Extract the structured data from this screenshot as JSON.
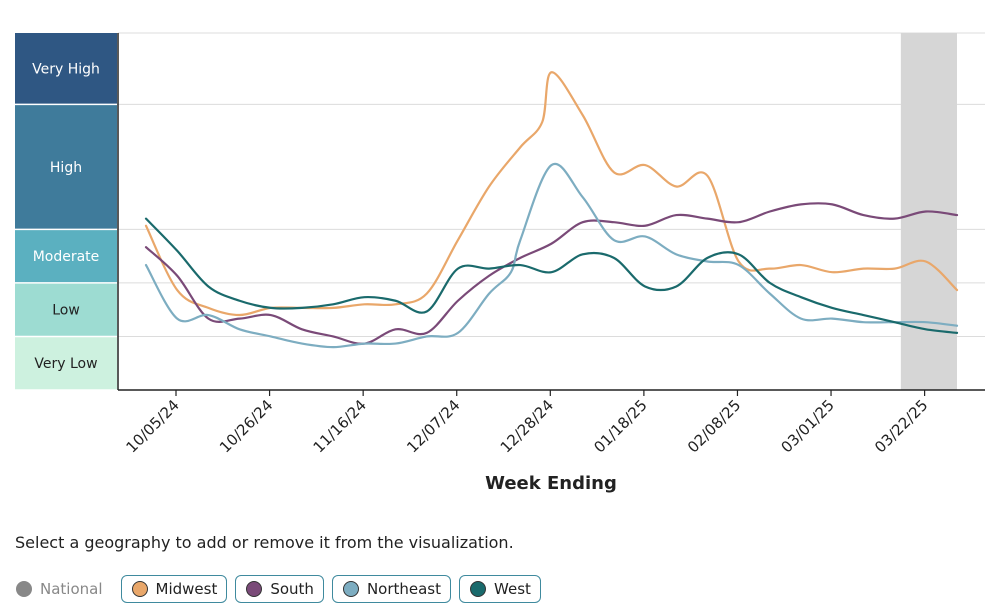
{
  "chart_data": {
    "type": "line",
    "xlabel": "Week Ending",
    "x_ticks": [
      "10/05/24",
      "10/26/24",
      "11/16/24",
      "12/07/24",
      "12/28/24",
      "01/18/25",
      "02/08/25",
      "03/01/25",
      "03/22/25"
    ],
    "ylim": [
      0,
      10
    ],
    "levels": [
      {
        "label": "Very High",
        "from": 8,
        "to": 10,
        "color": "#2f5783",
        "text_color": "#ffffff"
      },
      {
        "label": "High",
        "from": 4.5,
        "to": 8,
        "color": "#3f7b9b",
        "text_color": "#ffffff"
      },
      {
        "label": "Moderate",
        "from": 3,
        "to": 4.5,
        "color": "#5bb0c0",
        "text_color": "#ffffff"
      },
      {
        "label": "Low",
        "from": 1.5,
        "to": 3,
        "color": "#9ddcd2",
        "text_color": "#222222"
      },
      {
        "label": "Very Low",
        "from": 0,
        "to": 1.5,
        "color": "#cdf1df",
        "text_color": "#222222"
      }
    ],
    "shaded_week_range": [
      24.2,
      26
    ],
    "series": [
      {
        "name": "Midwest",
        "color": "#e9a76a",
        "x": [
          0,
          1,
          2,
          3,
          4,
          5,
          6,
          7,
          8,
          9,
          10,
          11,
          12,
          12.7,
          13,
          14,
          15,
          16,
          17,
          18,
          19,
          20,
          21,
          22,
          23,
          24,
          25,
          26
        ],
        "values": [
          4.6,
          2.8,
          2.3,
          2.1,
          2.3,
          2.3,
          2.3,
          2.4,
          2.4,
          2.7,
          4.2,
          5.7,
          6.8,
          7.5,
          8.9,
          7.7,
          6.1,
          6.3,
          5.7,
          6.0,
          3.6,
          3.4,
          3.5,
          3.3,
          3.4,
          3.4,
          3.6,
          2.8
        ]
      },
      {
        "name": "South",
        "color": "#7a4a78",
        "x": [
          0,
          1,
          2,
          3,
          4,
          5,
          6,
          7,
          8,
          9,
          10,
          11,
          12,
          13,
          14,
          15,
          16,
          17,
          18,
          19,
          20,
          21,
          22,
          23,
          24,
          25,
          26
        ],
        "values": [
          4.0,
          3.2,
          2.0,
          2.0,
          2.1,
          1.7,
          1.5,
          1.3,
          1.7,
          1.6,
          2.5,
          3.2,
          3.7,
          4.1,
          4.7,
          4.7,
          4.6,
          4.9,
          4.8,
          4.7,
          5.0,
          5.2,
          5.2,
          4.9,
          4.8,
          5.0,
          4.9
        ]
      },
      {
        "name": "Northeast",
        "color": "#7dadc1",
        "x": [
          0,
          1,
          2,
          3,
          4,
          5,
          6,
          7,
          8,
          9,
          10,
          11,
          11.7,
          12,
          13,
          14,
          15,
          16,
          17,
          18,
          19,
          20,
          21,
          22,
          23,
          24,
          25,
          26
        ],
        "values": [
          3.5,
          2.0,
          2.1,
          1.7,
          1.5,
          1.3,
          1.2,
          1.3,
          1.3,
          1.5,
          1.6,
          2.7,
          3.3,
          4.2,
          6.3,
          5.4,
          4.2,
          4.3,
          3.8,
          3.6,
          3.5,
          2.7,
          2.0,
          2.0,
          1.9,
          1.9,
          1.9,
          1.8
        ]
      },
      {
        "name": "West",
        "color": "#1a6a6c",
        "x": [
          0,
          1,
          2,
          3,
          4,
          5,
          6,
          7,
          8,
          9,
          10,
          11,
          12,
          13,
          14,
          15,
          16,
          17,
          18,
          19,
          20,
          21,
          22,
          23,
          24,
          25,
          26
        ],
        "values": [
          4.8,
          3.9,
          2.9,
          2.5,
          2.3,
          2.3,
          2.4,
          2.6,
          2.5,
          2.2,
          3.4,
          3.4,
          3.5,
          3.3,
          3.8,
          3.7,
          2.9,
          2.9,
          3.7,
          3.8,
          3.0,
          2.6,
          2.3,
          2.1,
          1.9,
          1.7,
          1.6
        ]
      }
    ]
  },
  "instruction": "Select a geography to add or remove it from the visualization.",
  "legend": [
    {
      "label": "National",
      "color": "#888888",
      "active": false
    },
    {
      "label": "Midwest",
      "color": "#e9a76a",
      "active": true
    },
    {
      "label": "South",
      "color": "#7a4a78",
      "active": true
    },
    {
      "label": "Northeast",
      "color": "#7dadc1",
      "active": true
    },
    {
      "label": "West",
      "color": "#1a6a6c",
      "active": true
    }
  ]
}
